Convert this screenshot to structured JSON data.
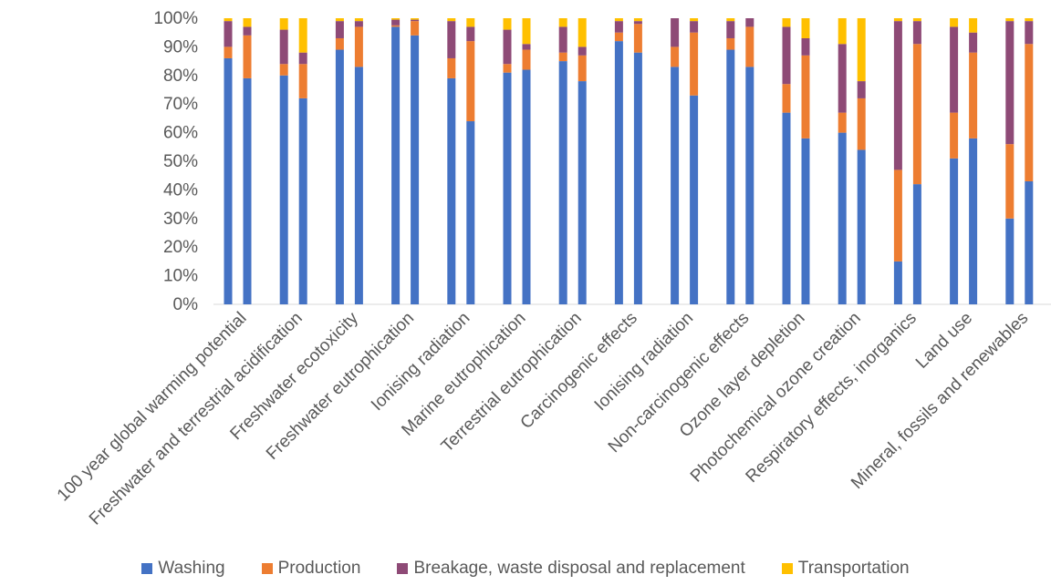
{
  "chart_data": {
    "type": "bar",
    "stacked": true,
    "percent": true,
    "ylim": [
      0,
      100
    ],
    "y_ticks": [
      "0%",
      "10%",
      "20%",
      "30%",
      "40%",
      "50%",
      "60%",
      "70%",
      "80%",
      "90%",
      "100%"
    ],
    "legend_position": "bottom",
    "categories": [
      "100 year global warming potential",
      "Freshwater and terrestrial acidification",
      "Freshwater ecotoxicity",
      "Freshwater eutrophication",
      "Ionising radiation",
      "Marine eutrophication",
      "Terrestrial eutrophication",
      "Carcinogenic effects",
      "Ionising radiation",
      "Non-carcinogenic effects",
      "Ozone layer depletion",
      "Photochemical ozone creation",
      "Respiratory effects, inorganics",
      "Land use",
      "Mineral, fossils and renewables"
    ],
    "colors": [
      "#4472C4",
      "#ED7D31",
      "#8E4A76",
      "#FFC000"
    ],
    "series": [
      {
        "name": "Washing",
        "values": [
          [
            86,
            79
          ],
          [
            80,
            72
          ],
          [
            89,
            83
          ],
          [
            97,
            94
          ],
          [
            79,
            64
          ],
          [
            81,
            82
          ],
          [
            85,
            78
          ],
          [
            92,
            88
          ],
          [
            83,
            73
          ],
          [
            89,
            83
          ],
          [
            67,
            58
          ],
          [
            60,
            54
          ],
          [
            15,
            42
          ],
          [
            51,
            58
          ],
          [
            30,
            43
          ]
        ]
      },
      {
        "name": "Production",
        "values": [
          [
            4,
            15
          ],
          [
            4,
            12
          ],
          [
            4,
            14
          ],
          [
            0.5,
            5
          ],
          [
            7,
            28
          ],
          [
            3,
            7
          ],
          [
            3,
            9
          ],
          [
            3,
            10
          ],
          [
            7,
            22
          ],
          [
            4,
            14
          ],
          [
            10,
            29
          ],
          [
            7,
            18
          ],
          [
            32,
            49
          ],
          [
            16,
            30
          ],
          [
            26,
            48
          ]
        ]
      },
      {
        "name": "Breakage, waste disposal and replacement",
        "values": [
          [
            9,
            3
          ],
          [
            12,
            4
          ],
          [
            6,
            2
          ],
          [
            2,
            0.5
          ],
          [
            13,
            5
          ],
          [
            12,
            2
          ],
          [
            9,
            3
          ],
          [
            4,
            1
          ],
          [
            10,
            4
          ],
          [
            6,
            3
          ],
          [
            20,
            6
          ],
          [
            24,
            6
          ],
          [
            52,
            8
          ],
          [
            30,
            7
          ],
          [
            43,
            8
          ]
        ]
      },
      {
        "name": "Transportation",
        "values": [
          [
            1,
            3
          ],
          [
            4,
            12
          ],
          [
            1,
            1
          ],
          [
            0.5,
            0.5
          ],
          [
            1,
            3
          ],
          [
            4,
            9
          ],
          [
            3,
            10
          ],
          [
            1,
            1
          ],
          [
            0.5,
            1
          ],
          [
            1,
            1
          ],
          [
            3,
            7
          ],
          [
            9,
            22
          ],
          [
            1,
            1
          ],
          [
            3,
            5
          ],
          [
            1,
            1
          ]
        ]
      }
    ]
  }
}
